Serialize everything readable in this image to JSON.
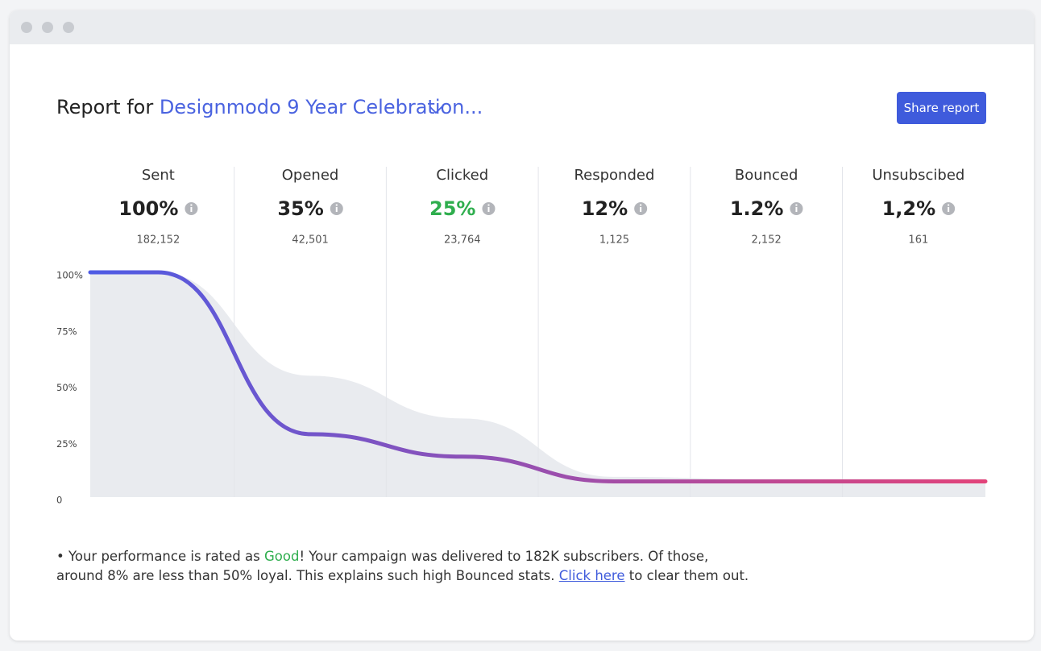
{
  "header": {
    "prefix": "Report for",
    "campaign": "Designmodo 9 Year Celebration...",
    "button": "Share report"
  },
  "chart_data": {
    "type": "funnel",
    "categories": [
      "Sent",
      "Opened",
      "Clicked",
      "Responded",
      "Bounced",
      "Unsubscibed"
    ],
    "rates": [
      "100%",
      "35%",
      "25%",
      "12%",
      "1.2%",
      "1,2%"
    ],
    "rate_colors": [
      "#222222",
      "#222222",
      "#2fae4e",
      "#222222",
      "#222222",
      "#222222"
    ],
    "counts": [
      "182,152",
      "42,501",
      "23,764",
      "1,125",
      "2,152",
      "161"
    ],
    "ylim": [
      0,
      100
    ],
    "yticks": [
      {
        "value": 100,
        "label": "100%"
      },
      {
        "value": 75,
        "label": "75%"
      },
      {
        "value": 50,
        "label": "50%"
      },
      {
        "value": 25,
        "label": "25%"
      },
      0
    ],
    "series": [
      {
        "style": "area",
        "color": "#e9ebef",
        "values": [
          100,
          54,
          35,
          9,
          8,
          8
        ]
      },
      {
        "style": "line",
        "gradient": [
          "#4e5be4",
          "#e2437a"
        ],
        "values": [
          100,
          28,
          18,
          7,
          7,
          7
        ]
      }
    ]
  },
  "summary": {
    "rating_prefix": "• Your performance is rated as ",
    "rating": "Good",
    "line1_rest": "! Your campaign was delivered to 182K subscribers. Of those,",
    "line2": "around 8% are less than 50% loyal. This explains such high Bounced stats. ",
    "link": "Click here",
    "line2_rest": " to clear them out."
  }
}
